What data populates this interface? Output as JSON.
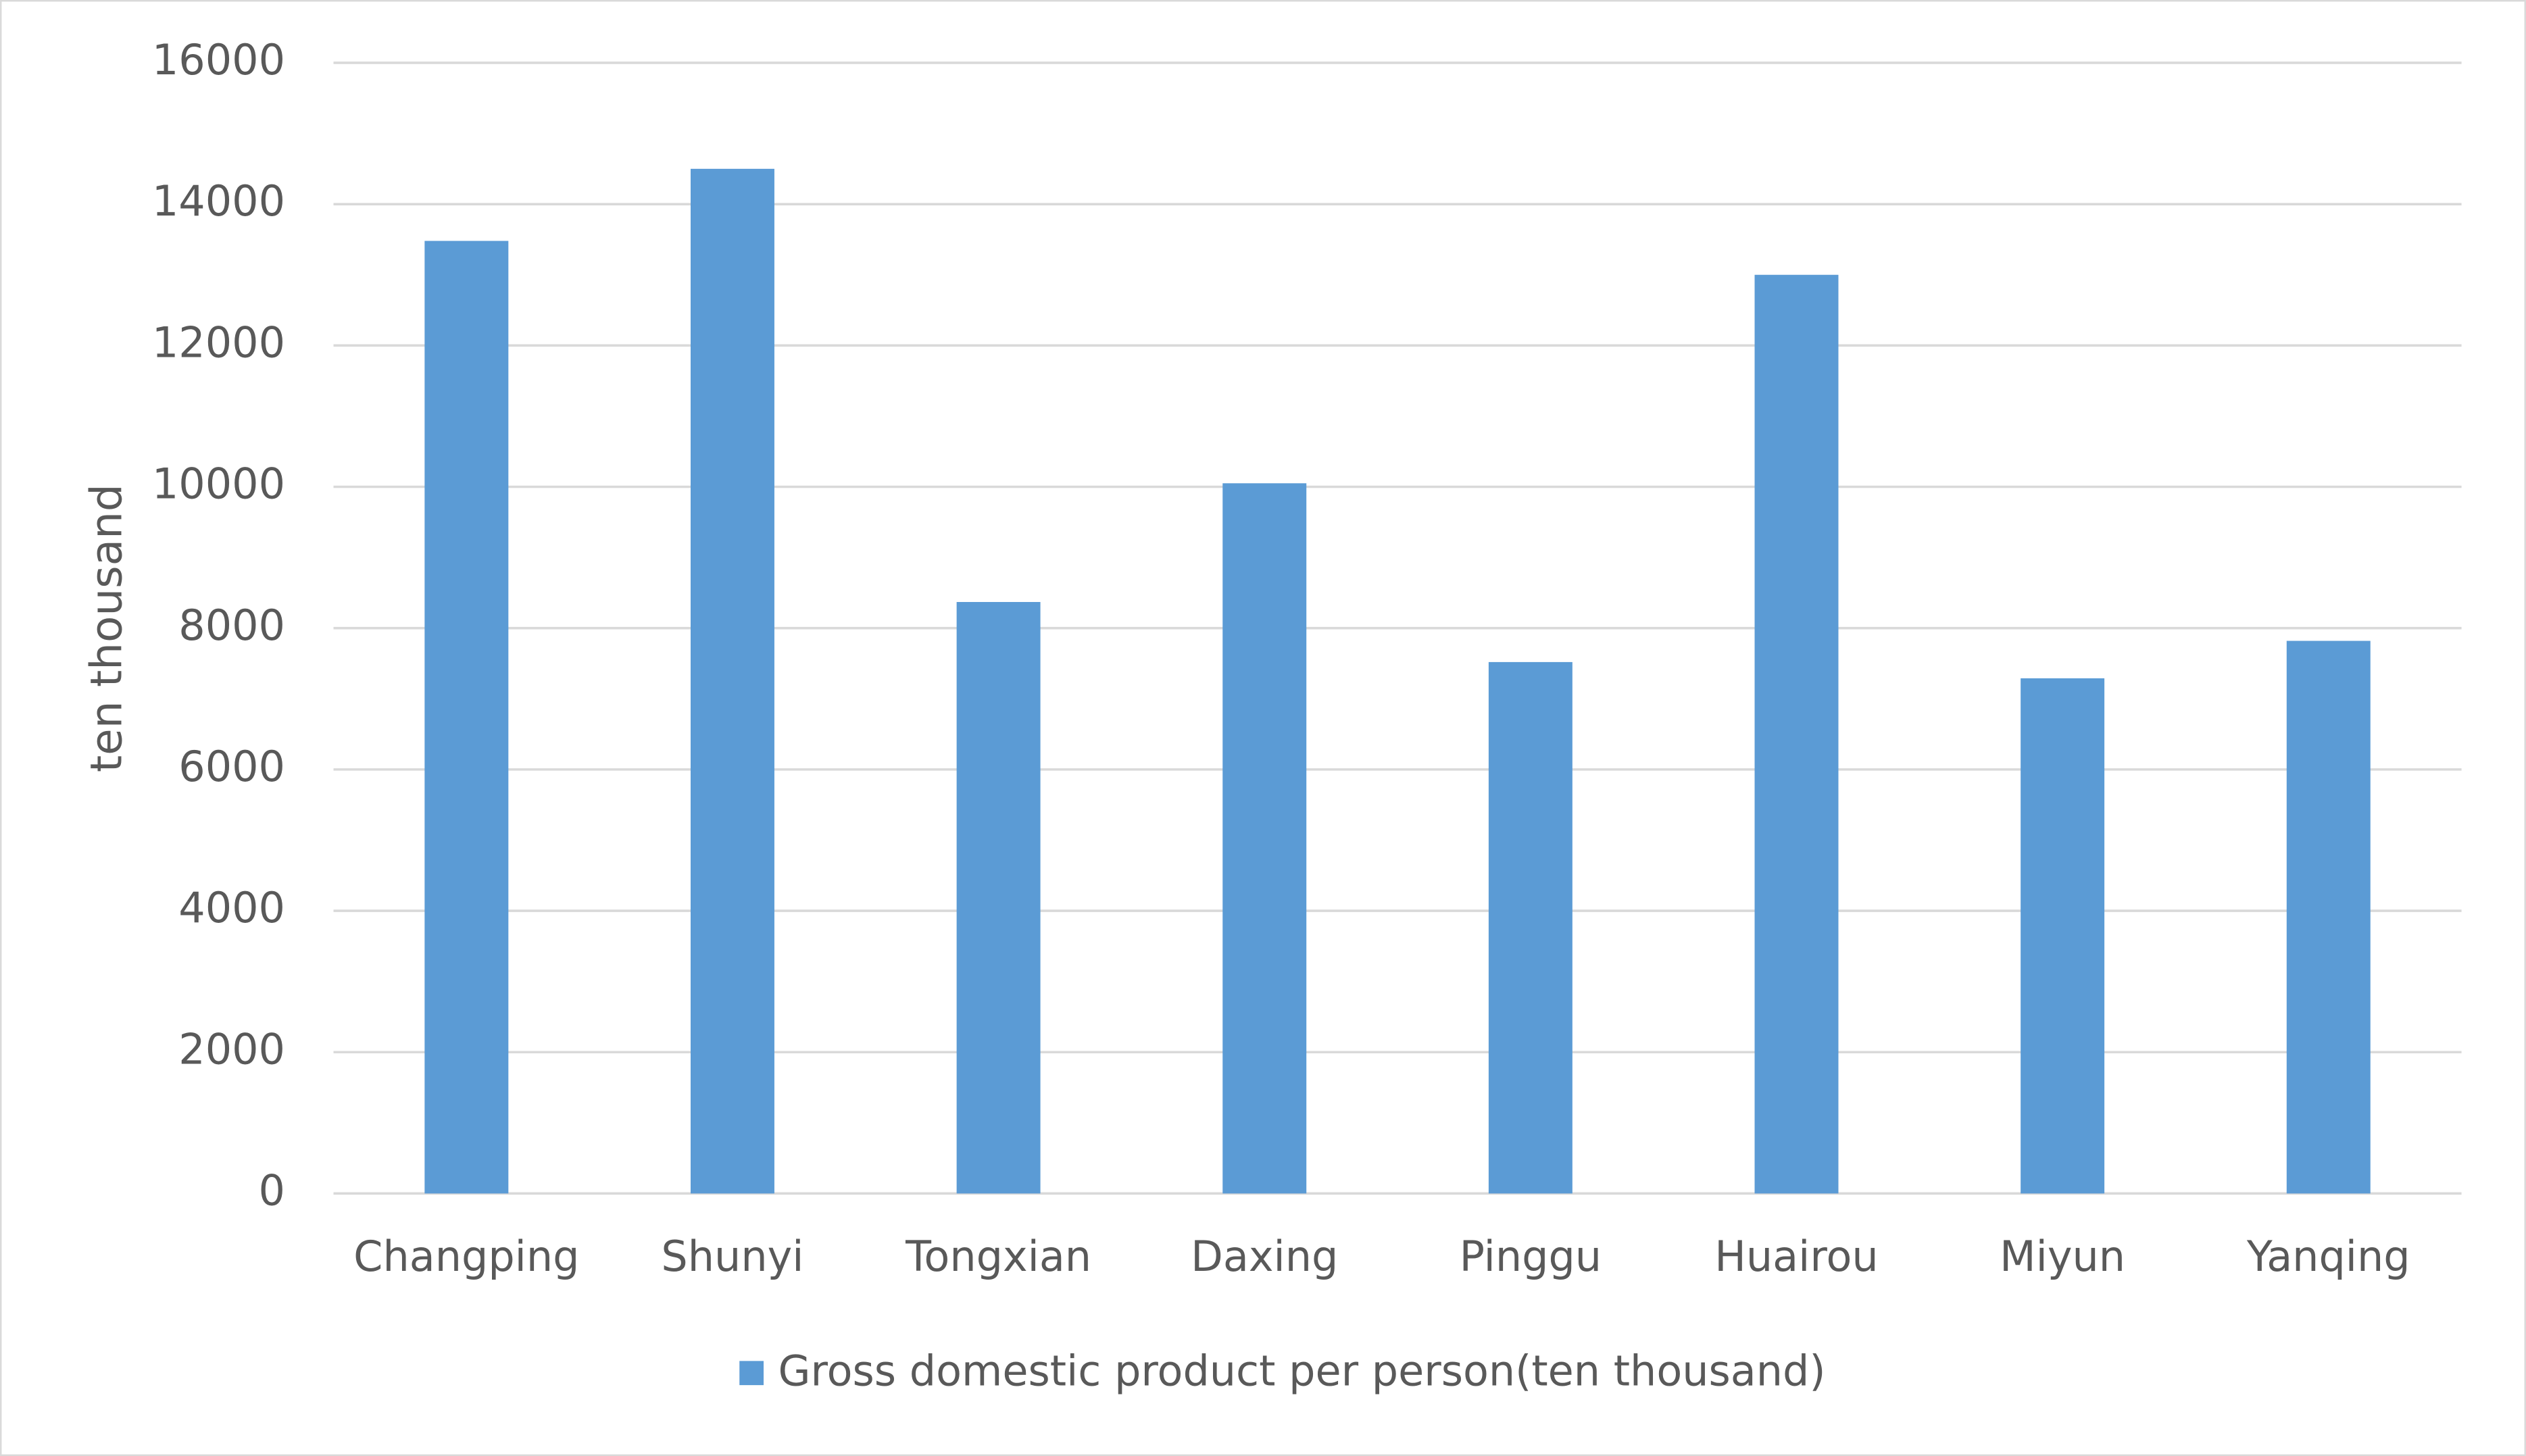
{
  "chart_data": {
    "type": "bar",
    "y_label": "ten thousand",
    "categories": [
      "Changping",
      "Shunyi",
      "Tongxian",
      "Daxing",
      "Pinggu",
      "Huairou",
      "Miyun",
      "Yanqing"
    ],
    "series": [
      {
        "name": "Gross domestic product per person(ten thousand)",
        "color": "#5b9bd5",
        "values": [
          13480,
          14500,
          8370,
          10050,
          7520,
          13000,
          7290,
          7820
        ]
      }
    ],
    "ylim": [
      0,
      16000
    ],
    "yticks": [
      0,
      2000,
      4000,
      6000,
      8000,
      10000,
      12000,
      14000,
      16000
    ],
    "grid": true,
    "legend": "bottom"
  }
}
